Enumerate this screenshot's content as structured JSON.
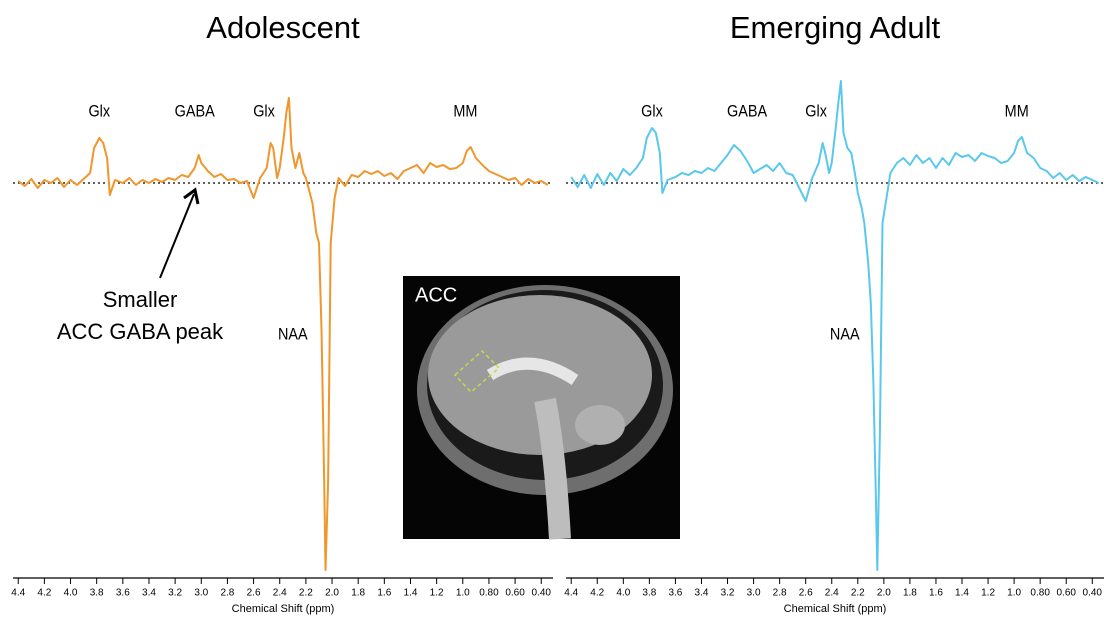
{
  "chart_data": [
    {
      "type": "line",
      "title": "Adolescent",
      "x_label": "Chemical Shift (ppm)",
      "xlim": [
        4.44,
        0.31
      ],
      "ylim": [
        -40,
        10
      ],
      "reference_line": 0,
      "xticks": [
        4.4,
        4.2,
        {
          "value": 4,
          "label": "4.0"
        },
        3.8,
        3.6,
        3.4,
        3.2,
        {
          "value": 3,
          "label": "3.0"
        },
        2.8,
        2.6,
        2.4,
        2.2,
        {
          "value": 2,
          "label": "2.0"
        },
        1.8,
        1.6,
        1.4,
        1.2,
        {
          "value": 1,
          "label": "1.0"
        },
        {
          "value": 0.8,
          "label": "0.80"
        },
        {
          "value": 0.6,
          "label": "0.60"
        },
        {
          "value": 0.4,
          "label": "0.40"
        }
      ],
      "annotations": [
        "Glx",
        "GABA",
        "Glx",
        "MM",
        "NAA"
      ],
      "callout": [
        "Smaller",
        "ACC GABA peak"
      ],
      "series": [
        {
          "color": "#f0962d",
          "x": [
            4.4,
            4.35,
            4.3,
            4.25,
            4.2,
            4.15,
            4.1,
            4.05,
            4.0,
            3.95,
            3.9,
            3.85,
            3.82,
            3.78,
            3.75,
            3.72,
            3.7,
            3.66,
            3.6,
            3.55,
            3.5,
            3.45,
            3.4,
            3.35,
            3.3,
            3.25,
            3.2,
            3.15,
            3.1,
            3.05,
            3.02,
            3.0,
            2.95,
            2.9,
            2.85,
            2.8,
            2.75,
            2.7,
            2.65,
            2.6,
            2.55,
            2.5,
            2.47,
            2.45,
            2.42,
            2.4,
            2.37,
            2.35,
            2.33,
            2.31,
            2.28,
            2.25,
            2.22,
            2.2,
            2.17,
            2.15,
            2.12,
            2.1,
            2.08,
            2.06,
            2.05,
            2.03,
            2.01,
            1.98,
            1.95,
            1.9,
            1.85,
            1.8,
            1.75,
            1.7,
            1.65,
            1.6,
            1.55,
            1.5,
            1.45,
            1.4,
            1.35,
            1.3,
            1.25,
            1.2,
            1.15,
            1.1,
            1.05,
            1.0,
            0.97,
            0.94,
            0.9,
            0.85,
            0.8,
            0.75,
            0.7,
            0.65,
            0.6,
            0.55,
            0.5,
            0.45,
            0.4,
            0.35
          ],
          "values": [
            0.2,
            -0.3,
            0.4,
            -0.5,
            0.3,
            0,
            0.5,
            -0.4,
            0.3,
            -0.2,
            0.4,
            1.0,
            3.5,
            4.5,
            4.0,
            2.5,
            -1.2,
            0.3,
            0,
            0.5,
            -0.2,
            0.3,
            0,
            0.4,
            0.1,
            0.5,
            0.3,
            0.8,
            0.6,
            1.5,
            2.8,
            2.0,
            1.2,
            0.6,
            0.9,
            0.3,
            0.4,
            0,
            0.2,
            -1.5,
            0.5,
            1.5,
            4.0,
            3.5,
            0.5,
            1.5,
            4.5,
            7.0,
            8.5,
            3.5,
            1.5,
            3.0,
            1.0,
            0.5,
            -1.0,
            -2.0,
            -5.0,
            -6.0,
            -15,
            -30,
            -38.7,
            -30,
            -6,
            -1.5,
            0.5,
            -0.3,
            0.8,
            0.6,
            1.2,
            0.9,
            1.2,
            0.7,
            1.0,
            0.4,
            1.2,
            1.5,
            1.8,
            1.0,
            2.0,
            1.6,
            1.8,
            1.4,
            1.5,
            2.0,
            3.2,
            3.6,
            2.5,
            1.8,
            1.2,
            0.9,
            0.6,
            0.3,
            0.5,
            -0.2,
            0.4,
            0,
            0.2,
            -0.2
          ]
        }
      ]
    },
    {
      "type": "line",
      "title": "Emerging Adult",
      "x_label": "Chemical Shift (ppm)",
      "xlim": [
        4.44,
        0.31
      ],
      "ylim": [
        -40,
        10
      ],
      "reference_line": 0,
      "xticks": [
        4.4,
        4.2,
        {
          "value": 4,
          "label": "4.0"
        },
        3.8,
        3.6,
        3.4,
        3.2,
        {
          "value": 3,
          "label": "3.0"
        },
        2.8,
        2.6,
        2.4,
        2.2,
        {
          "value": 2,
          "label": "2.0"
        },
        1.8,
        1.6,
        1.4,
        1.2,
        {
          "value": 1,
          "label": "1.0"
        },
        {
          "value": 0.8,
          "label": "0.80"
        },
        {
          "value": 0.6,
          "label": "0.60"
        },
        {
          "value": 0.4,
          "label": "0.40"
        }
      ],
      "annotations": [
        "Glx",
        "GABA",
        "Glx",
        "MM",
        "NAA"
      ],
      "series": [
        {
          "color": "#5ac8ec",
          "x": [
            4.4,
            4.35,
            4.3,
            4.25,
            4.2,
            4.15,
            4.1,
            4.05,
            4.0,
            3.95,
            3.9,
            3.85,
            3.82,
            3.78,
            3.75,
            3.72,
            3.7,
            3.66,
            3.6,
            3.55,
            3.5,
            3.45,
            3.4,
            3.35,
            3.3,
            3.25,
            3.2,
            3.15,
            3.1,
            3.05,
            3.02,
            3.0,
            2.95,
            2.9,
            2.85,
            2.8,
            2.75,
            2.7,
            2.65,
            2.6,
            2.55,
            2.5,
            2.47,
            2.45,
            2.42,
            2.4,
            2.37,
            2.35,
            2.33,
            2.31,
            2.28,
            2.25,
            2.22,
            2.2,
            2.17,
            2.15,
            2.12,
            2.1,
            2.08,
            2.06,
            2.05,
            2.03,
            2.01,
            1.98,
            1.95,
            1.9,
            1.85,
            1.8,
            1.75,
            1.7,
            1.65,
            1.6,
            1.55,
            1.5,
            1.45,
            1.4,
            1.35,
            1.3,
            1.25,
            1.2,
            1.15,
            1.1,
            1.05,
            1.0,
            0.97,
            0.94,
            0.9,
            0.85,
            0.8,
            0.75,
            0.7,
            0.65,
            0.6,
            0.55,
            0.5,
            0.45,
            0.4,
            0.35
          ],
          "values": [
            0.6,
            -0.4,
            0.8,
            -0.5,
            0.9,
            -0.2,
            1.0,
            0.2,
            1.4,
            0.8,
            1.5,
            2.5,
            4.5,
            5.5,
            5.0,
            3.0,
            -1.0,
            0.3,
            0.6,
            1.0,
            0.8,
            1.2,
            1.0,
            1.5,
            1.2,
            2.0,
            2.8,
            3.8,
            3.2,
            2.2,
            1.5,
            1.0,
            1.4,
            1.8,
            1.2,
            2.0,
            1.0,
            0.8,
            -0.5,
            -1.8,
            0.5,
            2.0,
            4.0,
            3.0,
            1.0,
            2.0,
            5.5,
            8.0,
            10.2,
            5.0,
            3.5,
            3.0,
            0.8,
            -1.0,
            -2.5,
            -4.0,
            -8.0,
            -12,
            -20,
            -32,
            -38.7,
            -25,
            -4,
            -1.5,
            1.0,
            2.0,
            2.5,
            1.8,
            2.8,
            2.0,
            2.5,
            1.5,
            2.5,
            1.8,
            3.0,
            2.6,
            2.8,
            2.2,
            3.0,
            2.7,
            2.5,
            2.0,
            2.2,
            3.0,
            4.2,
            4.6,
            3.0,
            2.5,
            1.5,
            1.2,
            0.5,
            1.0,
            0.3,
            0.8,
            0.2,
            0.6,
            0.3,
            0.0
          ]
        }
      ]
    }
  ],
  "inset": {
    "label": "ACC"
  }
}
